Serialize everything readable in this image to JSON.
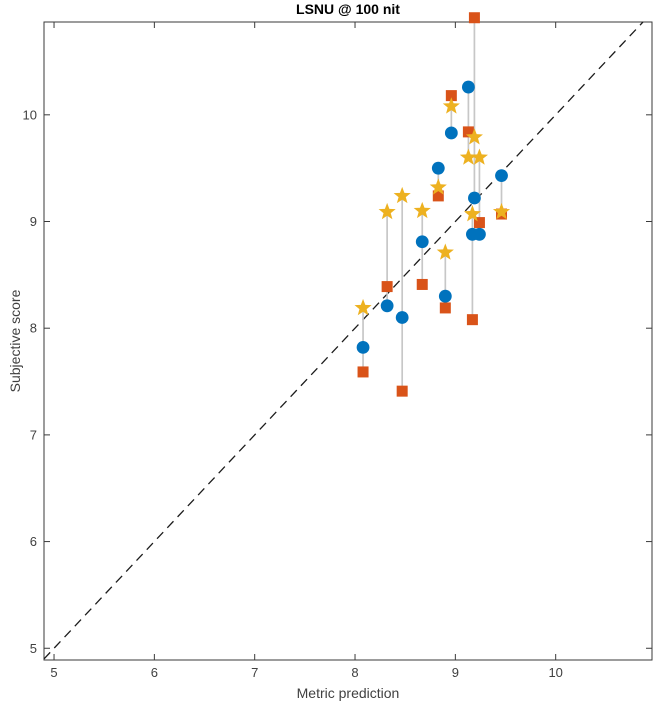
{
  "figure": {
    "title": "LSNU @ 100 nit",
    "xlabel": "Metric prediction",
    "ylabel": "Subjective score"
  },
  "chart_data": {
    "type": "scatter",
    "title": "LSNU @ 100 nit",
    "xlabel": "Metric prediction",
    "ylabel": "Subjective score",
    "xlim": [
      4.9,
      10.96
    ],
    "ylim": [
      4.89,
      10.87
    ],
    "xticks": [
      5,
      6,
      7,
      8,
      9,
      10
    ],
    "yticks": [
      5,
      6,
      7,
      8,
      9,
      10
    ],
    "grid": false,
    "legend_position": "none",
    "axis_color": "#3a3a3a",
    "tick_label_color": "#404040",
    "identity_line": {
      "equation": "y = x",
      "style": "dashed",
      "color": "#1c1c1c"
    },
    "connectors": {
      "color": "#c7c7c7",
      "description": "vertical gray line joining the three markers that share one metric-prediction value"
    },
    "series": [
      {
        "name": "series-circle",
        "marker": "circle",
        "color": "#0072BD"
      },
      {
        "name": "series-square",
        "marker": "square",
        "color": "#D95319"
      },
      {
        "name": "series-pentagram",
        "marker": "star",
        "color": "#EDB120"
      }
    ],
    "clusters": [
      {
        "x": 8.08,
        "circle": 7.82,
        "square": 7.59,
        "star": 8.19
      },
      {
        "x": 8.32,
        "circle": 8.21,
        "square": 8.39,
        "star": 9.09
      },
      {
        "x": 8.47,
        "circle": 8.1,
        "square": 7.41,
        "star": 9.24
      },
      {
        "x": 8.67,
        "circle": 8.81,
        "square": 8.41,
        "star": 9.1
      },
      {
        "x": 8.83,
        "circle": 9.5,
        "square": 9.24,
        "star": 9.32
      },
      {
        "x": 8.9,
        "circle": 8.3,
        "square": 8.19,
        "star": 8.71
      },
      {
        "x": 8.96,
        "circle": 9.83,
        "square": 10.18,
        "star": 10.08
      },
      {
        "x": 9.13,
        "circle": 10.26,
        "square": 9.84,
        "star": 9.6
      },
      {
        "x": 9.17,
        "circle": 8.88,
        "square": 8.08,
        "star": 9.07
      },
      {
        "x": 9.19,
        "circle": 9.22,
        "square": 10.91,
        "star": 9.79
      },
      {
        "x": 9.24,
        "circle": 8.88,
        "square": 8.99,
        "star": 9.6
      },
      {
        "x": 9.46,
        "circle": 9.43,
        "square": 9.07,
        "star": 9.09
      }
    ]
  }
}
